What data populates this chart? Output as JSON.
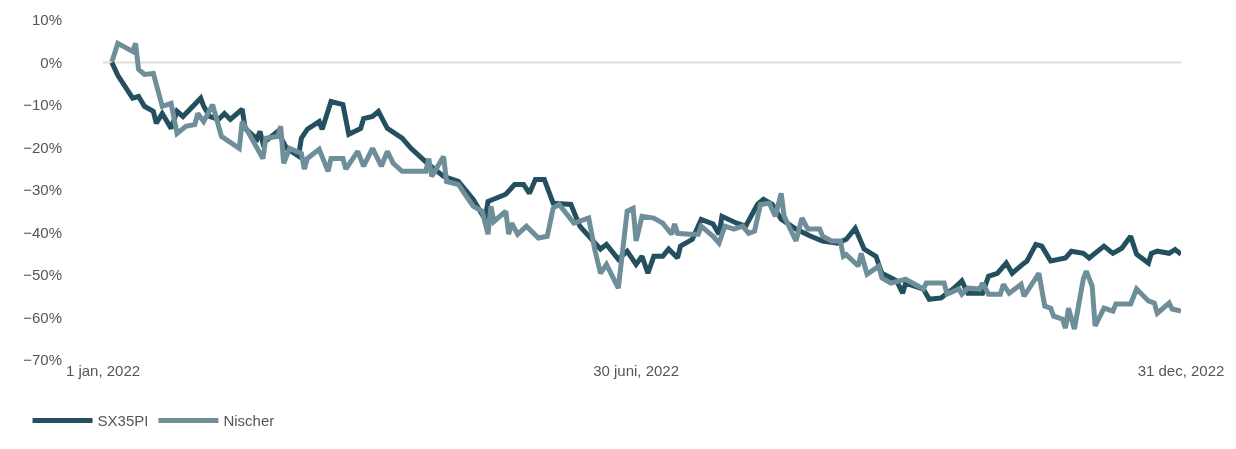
{
  "chart_data": {
    "type": "line",
    "xlim": [
      "2022-01-01",
      "2022-12-31"
    ],
    "xticks": [
      {
        "value": "2022-01-01",
        "label": "1 jan, 2022"
      },
      {
        "value": "2022-06-30",
        "label": "30 juni, 2022"
      },
      {
        "value": "2022-12-31",
        "label": "31 dec, 2022"
      }
    ],
    "ylim": [
      -70,
      10
    ],
    "yticks": [
      {
        "value": 10,
        "label": "10%"
      },
      {
        "value": 0,
        "label": "0%"
      },
      {
        "value": -10,
        "label": "−10%"
      },
      {
        "value": -20,
        "label": "−20%"
      },
      {
        "value": -30,
        "label": "−30%"
      },
      {
        "value": -40,
        "label": "−40%"
      },
      {
        "value": -50,
        "label": "−50%"
      },
      {
        "value": -60,
        "label": "−60%"
      },
      {
        "value": -70,
        "label": "−70%"
      }
    ],
    "ref_lines": [
      {
        "axis": "y",
        "value": 0,
        "label": null,
        "color": "#dddddd"
      }
    ],
    "grid": false,
    "legend": "bottom left",
    "marker": "none",
    "line_style": "solid",
    "series": [
      {
        "name": "SX35PI",
        "color": "#234f5e",
        "x": [
          "2022-01-04",
          "2022-01-06",
          "2022-01-11",
          "2022-01-13",
          "2022-01-15",
          "2022-01-18",
          "2022-01-19",
          "2022-01-21",
          "2022-01-24",
          "2022-01-26",
          "2022-01-28",
          "2022-02-03",
          "2022-02-04",
          "2022-02-06",
          "2022-02-09",
          "2022-02-11",
          "2022-02-13",
          "2022-02-17",
          "2022-02-18",
          "2022-02-22",
          "2022-02-23",
          "2022-02-24",
          "2022-03-01",
          "2022-03-04",
          "2022-03-08",
          "2022-03-09",
          "2022-03-11",
          "2022-03-15",
          "2022-03-16",
          "2022-03-19",
          "2022-03-23",
          "2022-03-25",
          "2022-03-29",
          "2022-03-30",
          "2022-04-02",
          "2022-04-04",
          "2022-04-07",
          "2022-04-12",
          "2022-04-15",
          "2022-04-21",
          "2022-04-26",
          "2022-05-01",
          "2022-05-06",
          "2022-05-10",
          "2022-05-11",
          "2022-05-17",
          "2022-05-20",
          "2022-05-23",
          "2022-05-25",
          "2022-05-27",
          "2022-05-30",
          "2022-06-02",
          "2022-06-08",
          "2022-06-11",
          "2022-06-15",
          "2022-06-18",
          "2022-06-20",
          "2022-06-24",
          "2022-06-27",
          "2022-06-30",
          "2022-07-02",
          "2022-07-04",
          "2022-07-06",
          "2022-07-09",
          "2022-07-11",
          "2022-07-14",
          "2022-07-15",
          "2022-07-19",
          "2022-07-22",
          "2022-07-26",
          "2022-07-28",
          "2022-07-29",
          "2022-08-03",
          "2022-08-06",
          "2022-08-10",
          "2022-08-12",
          "2022-08-15",
          "2022-08-18",
          "2022-08-23",
          "2022-08-28",
          "2022-09-01",
          "2022-09-06",
          "2022-09-09",
          "2022-09-12",
          "2022-09-15",
          "2022-09-19",
          "2022-09-21",
          "2022-09-26",
          "2022-09-28",
          "2022-09-29",
          "2022-10-05",
          "2022-10-07",
          "2022-10-11",
          "2022-10-13",
          "2022-10-15",
          "2022-10-18",
          "2022-10-20",
          "2022-10-25",
          "2022-10-27",
          "2022-10-30",
          "2022-11-02",
          "2022-11-04",
          "2022-11-08",
          "2022-11-09",
          "2022-11-12",
          "2022-11-14",
          "2022-11-17",
          "2022-11-22",
          "2022-11-24",
          "2022-11-28",
          "2022-11-30",
          "2022-12-05",
          "2022-12-08",
          "2022-12-11",
          "2022-12-14",
          "2022-12-16",
          "2022-12-20",
          "2022-12-21",
          "2022-12-23",
          "2022-12-27",
          "2022-12-29",
          "2022-12-31"
        ],
        "values": [
          0,
          -3,
          -8.4,
          -8,
          -10.3,
          -11.5,
          -14.3,
          -12,
          -15.5,
          -11.5,
          -12.7,
          -8.4,
          -10.3,
          -12.7,
          -13.4,
          -12,
          -13.4,
          -11,
          -15.5,
          -18,
          -16.2,
          -19,
          -16.2,
          -20.2,
          -22,
          -17.8,
          -15.7,
          -13.9,
          -15.7,
          -9.2,
          -9.9,
          -16.9,
          -15.5,
          -13.2,
          -12.7,
          -11.5,
          -15.5,
          -17.8,
          -20.2,
          -24,
          -26.8,
          -28,
          -32.2,
          -36.9,
          -32.7,
          -31,
          -28.7,
          -28.7,
          -30.8,
          -27.5,
          -27.5,
          -33.1,
          -33.4,
          -38.5,
          -41.6,
          -43.9,
          -42.8,
          -46.3,
          -44.4,
          -47.5,
          -45.6,
          -49.6,
          -45.6,
          -45.6,
          -43.9,
          -46,
          -43.2,
          -41.6,
          -36.9,
          -38,
          -40.4,
          -36.2,
          -37.8,
          -38.5,
          -33.4,
          -32.2,
          -33.4,
          -36.9,
          -39.2,
          -40.9,
          -42,
          -42.5,
          -41.6,
          -39,
          -43.9,
          -45.6,
          -49.6,
          -51.4,
          -54.3,
          -51.9,
          -53.3,
          -55.7,
          -55.4,
          -54.3,
          -53.3,
          -51.4,
          -54.3,
          -54.3,
          -50.3,
          -49.6,
          -47.2,
          -49.6,
          -47.2,
          -46.7,
          -42.8,
          -43.2,
          -46.7,
          -46,
          -44.4,
          -44.9,
          -46,
          -43.2,
          -44.9,
          -43.7,
          -40.9,
          -45.1,
          -47.2,
          -44.9,
          -44.4,
          -44.9,
          -44,
          -45.1
        ]
      },
      {
        "name": "Nischer",
        "color": "#6e8f9a",
        "x": [
          "2022-01-04",
          "2022-01-06",
          "2022-01-11",
          "2022-01-12",
          "2022-01-13",
          "2022-01-15",
          "2022-01-18",
          "2022-01-21",
          "2022-01-24",
          "2022-01-26",
          "2022-01-29",
          "2022-02-01",
          "2022-02-02",
          "2022-02-04",
          "2022-02-07",
          "2022-02-10",
          "2022-02-16",
          "2022-02-17",
          "2022-02-24",
          "2022-02-25",
          "2022-03-01",
          "2022-03-02",
          "2022-03-03",
          "2022-03-05",
          "2022-03-09",
          "2022-03-10",
          "2022-03-11",
          "2022-03-15",
          "2022-03-18",
          "2022-03-19",
          "2022-03-23",
          "2022-03-24",
          "2022-03-28",
          "2022-03-30",
          "2022-04-02",
          "2022-04-05",
          "2022-04-07",
          "2022-04-09",
          "2022-04-12",
          "2022-04-20",
          "2022-04-21",
          "2022-04-22",
          "2022-04-26",
          "2022-04-27",
          "2022-05-01",
          "2022-05-03",
          "2022-05-06",
          "2022-05-09",
          "2022-05-11",
          "2022-05-12",
          "2022-05-13",
          "2022-05-17",
          "2022-05-18",
          "2022-05-19",
          "2022-05-21",
          "2022-05-24",
          "2022-05-28",
          "2022-05-31",
          "2022-06-02",
          "2022-06-04",
          "2022-06-09",
          "2022-06-14",
          "2022-06-16",
          "2022-06-18",
          "2022-06-20",
          "2022-06-24",
          "2022-06-27",
          "2022-06-29",
          "2022-06-30",
          "2022-07-02",
          "2022-07-06",
          "2022-07-09",
          "2022-07-12",
          "2022-07-13",
          "2022-07-14",
          "2022-07-18",
          "2022-07-21",
          "2022-07-22",
          "2022-07-26",
          "2022-07-28",
          "2022-07-30",
          "2022-08-02",
          "2022-08-05",
          "2022-08-07",
          "2022-08-09",
          "2022-08-11",
          "2022-08-14",
          "2022-08-16",
          "2022-08-18",
          "2022-08-19",
          "2022-08-23",
          "2022-08-25",
          "2022-08-27",
          "2022-08-31",
          "2022-09-01",
          "2022-09-04",
          "2022-09-07",
          "2022-09-08",
          "2022-09-09",
          "2022-09-13",
          "2022-09-14",
          "2022-09-16",
          "2022-09-20",
          "2022-09-21",
          "2022-09-24",
          "2022-09-29",
          "2022-10-05",
          "2022-10-06",
          "2022-10-12",
          "2022-10-13",
          "2022-10-17",
          "2022-10-18",
          "2022-10-20",
          "2022-10-24",
          "2022-10-25",
          "2022-10-27",
          "2022-10-31",
          "2022-11-01",
          "2022-11-03",
          "2022-11-07",
          "2022-11-08",
          "2022-11-13",
          "2022-11-15",
          "2022-11-17",
          "2022-11-18",
          "2022-11-21",
          "2022-11-22",
          "2022-11-23",
          "2022-11-25",
          "2022-11-28",
          "2022-11-29",
          "2022-12-01",
          "2022-12-02",
          "2022-12-05",
          "2022-12-08",
          "2022-12-09",
          "2022-12-14",
          "2022-12-16",
          "2022-12-20",
          "2022-12-22",
          "2022-12-23",
          "2022-12-27",
          "2022-12-28",
          "2022-12-31"
        ],
        "values": [
          0.2,
          4.5,
          2.6,
          4.5,
          -1.6,
          -2.8,
          -2.6,
          -10.3,
          -9.6,
          -16.7,
          -15,
          -14.6,
          -12,
          -13.9,
          -9.9,
          -17.4,
          -20.2,
          -13.9,
          -22.6,
          -17.8,
          -17.4,
          -15,
          -23.7,
          -20.2,
          -21.4,
          -25.1,
          -22.6,
          -20.4,
          -25.6,
          -22.6,
          -22.6,
          -25.1,
          -20.9,
          -24.4,
          -20.2,
          -24.4,
          -20.9,
          -23.7,
          -25.6,
          -25.6,
          -22.6,
          -26.8,
          -22.1,
          -28,
          -28.7,
          -30.8,
          -33.8,
          -35,
          -40.4,
          -33.8,
          -37.4,
          -35,
          -40.4,
          -37.8,
          -40.4,
          -38.5,
          -41.3,
          -40.9,
          -34.3,
          -33.4,
          -37.8,
          -36.6,
          -43.9,
          -49.6,
          -47.5,
          -53.1,
          -35,
          -34.3,
          -42,
          -36.2,
          -36.6,
          -37.8,
          -40.4,
          -38,
          -40.2,
          -40.4,
          -40.4,
          -38.5,
          -40.9,
          -42.5,
          -38.5,
          -39.2,
          -38.5,
          -40.2,
          -39.7,
          -33.4,
          -33.1,
          -36.2,
          -30.8,
          -36.2,
          -42,
          -36.6,
          -39.2,
          -39.2,
          -40.9,
          -42,
          -42,
          -45.6,
          -45.2,
          -47.9,
          -44.9,
          -49.8,
          -47.9,
          -50.7,
          -51.9,
          -51,
          -53.3,
          -51.9,
          -51.9,
          -54.5,
          -53.3,
          -54.5,
          -53.1,
          -53.3,
          -51.9,
          -54.5,
          -54.5,
          -52.2,
          -54.3,
          -52.2,
          -55,
          -49.6,
          -57.3,
          -57.8,
          -59.7,
          -60.4,
          -62.5,
          -57.8,
          -62.7,
          -51,
          -49.1,
          -52.6,
          -62,
          -57.8,
          -58.5,
          -56.8,
          -56.8,
          -53.3,
          -56.1,
          -56.6,
          -59,
          -56.6,
          -58,
          -58.5
        ]
      }
    ]
  }
}
